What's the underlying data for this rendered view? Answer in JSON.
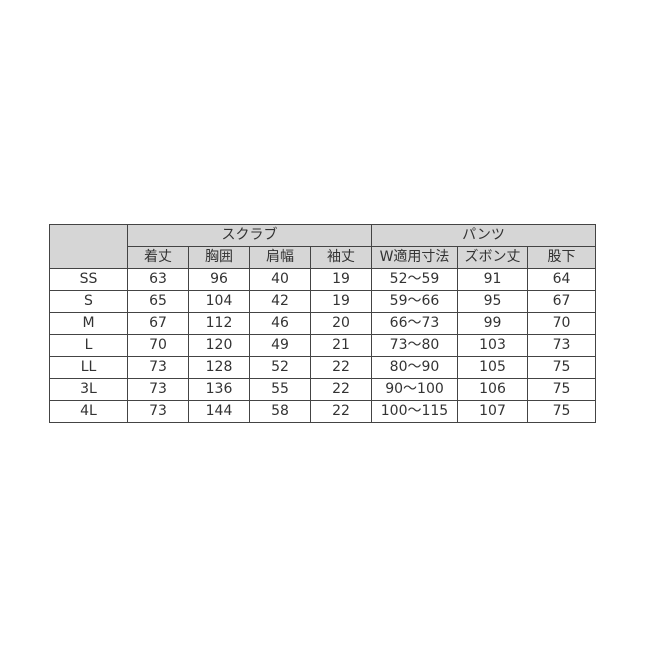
{
  "groups": [
    {
      "label": "スクラブ",
      "span": 4
    },
    {
      "label": "パンツ",
      "span": 3
    }
  ],
  "columns": [
    "着丈",
    "胸囲",
    "肩幅",
    "袖丈",
    "W適用寸法",
    "ズボン丈",
    "股下"
  ],
  "rows": [
    {
      "size": "SS",
      "values": [
        "63",
        "96",
        "40",
        "19",
        "52～59",
        "91",
        "64"
      ]
    },
    {
      "size": "S",
      "values": [
        "65",
        "104",
        "42",
        "19",
        "59～66",
        "95",
        "67"
      ]
    },
    {
      "size": "M",
      "values": [
        "67",
        "112",
        "46",
        "20",
        "66～73",
        "99",
        "70"
      ]
    },
    {
      "size": "L",
      "values": [
        "70",
        "120",
        "49",
        "21",
        "73～80",
        "103",
        "73"
      ]
    },
    {
      "size": "LL",
      "values": [
        "73",
        "128",
        "52",
        "22",
        "80～90",
        "105",
        "75"
      ]
    },
    {
      "size": "3L",
      "values": [
        "73",
        "136",
        "55",
        "22",
        "90～100",
        "106",
        "75"
      ]
    },
    {
      "size": "4L",
      "values": [
        "73",
        "144",
        "58",
        "22",
        "100～115",
        "107",
        "75"
      ]
    }
  ]
}
